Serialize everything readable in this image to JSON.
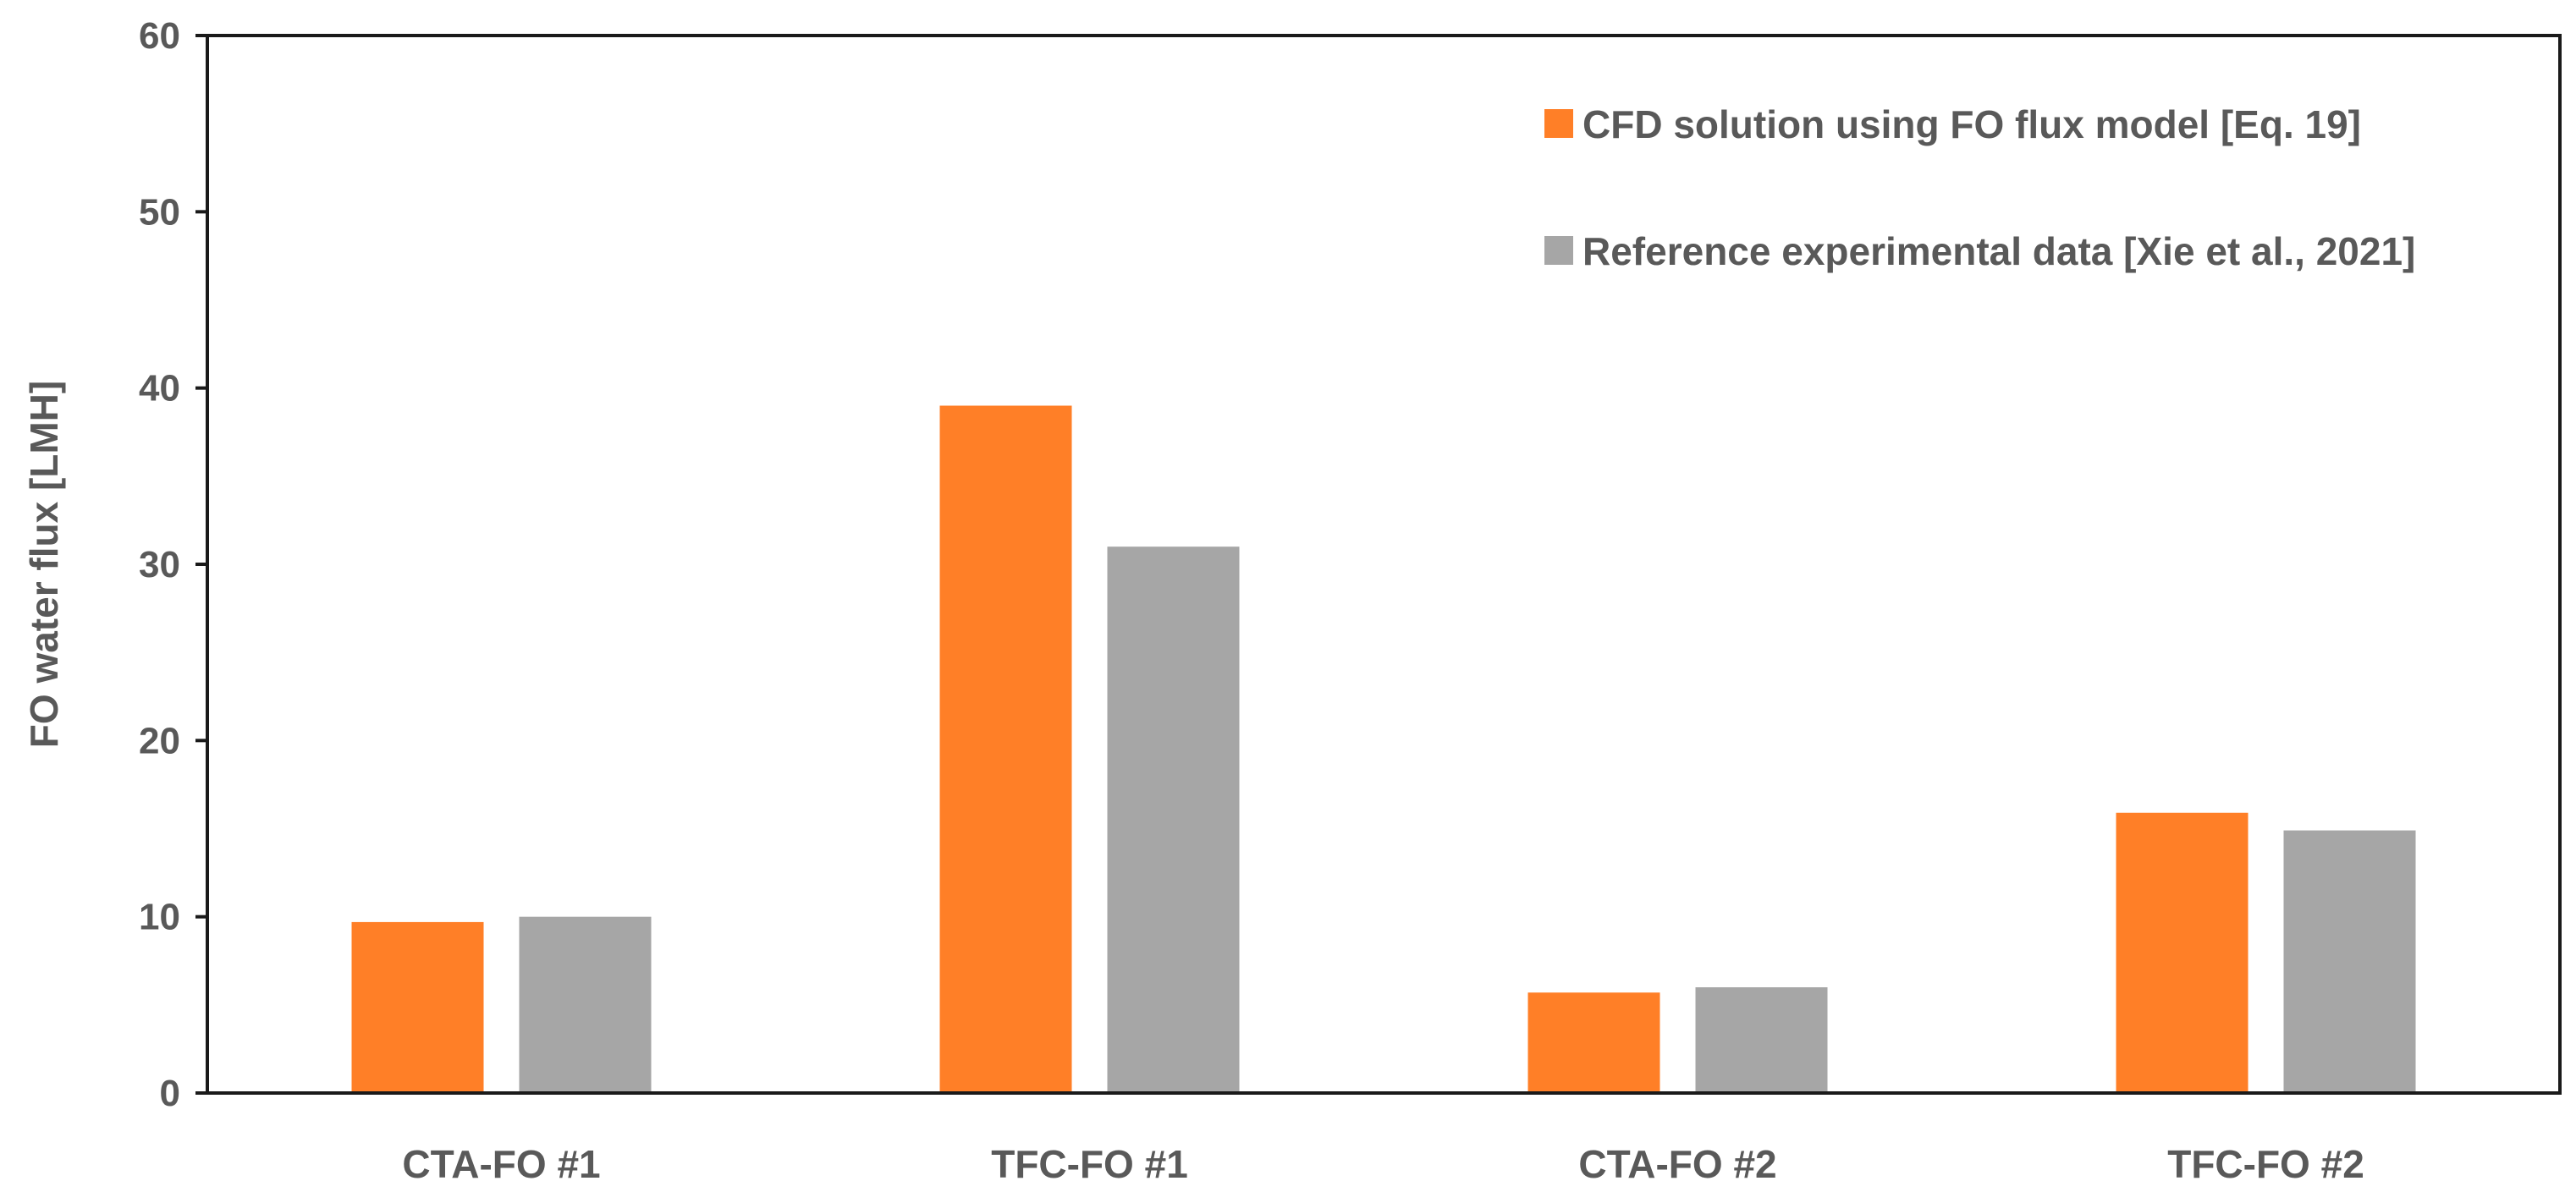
{
  "chart_data": {
    "type": "bar",
    "categories": [
      "CTA-FO #1",
      "TFC-FO #1",
      "CTA-FO #2",
      "TFC-FO #2"
    ],
    "series": [
      {
        "name": "CFD solution using FO flux model [Eq. 19]",
        "color": "#FF7F27",
        "values": [
          9.7,
          39.0,
          5.7,
          15.9
        ]
      },
      {
        "name": "Reference experimental data [Xie et al., 2021]",
        "color": "#A6A6A6",
        "values": [
          10.0,
          31.0,
          6.0,
          14.9
        ]
      }
    ],
    "title": "",
    "xlabel": "",
    "ylabel": "FO water flux [LMH]",
    "ylim": [
      0,
      60
    ],
    "yticks": [
      0,
      10,
      20,
      30,
      40,
      50,
      60
    ],
    "grid": false,
    "legend_position": "top-right"
  }
}
